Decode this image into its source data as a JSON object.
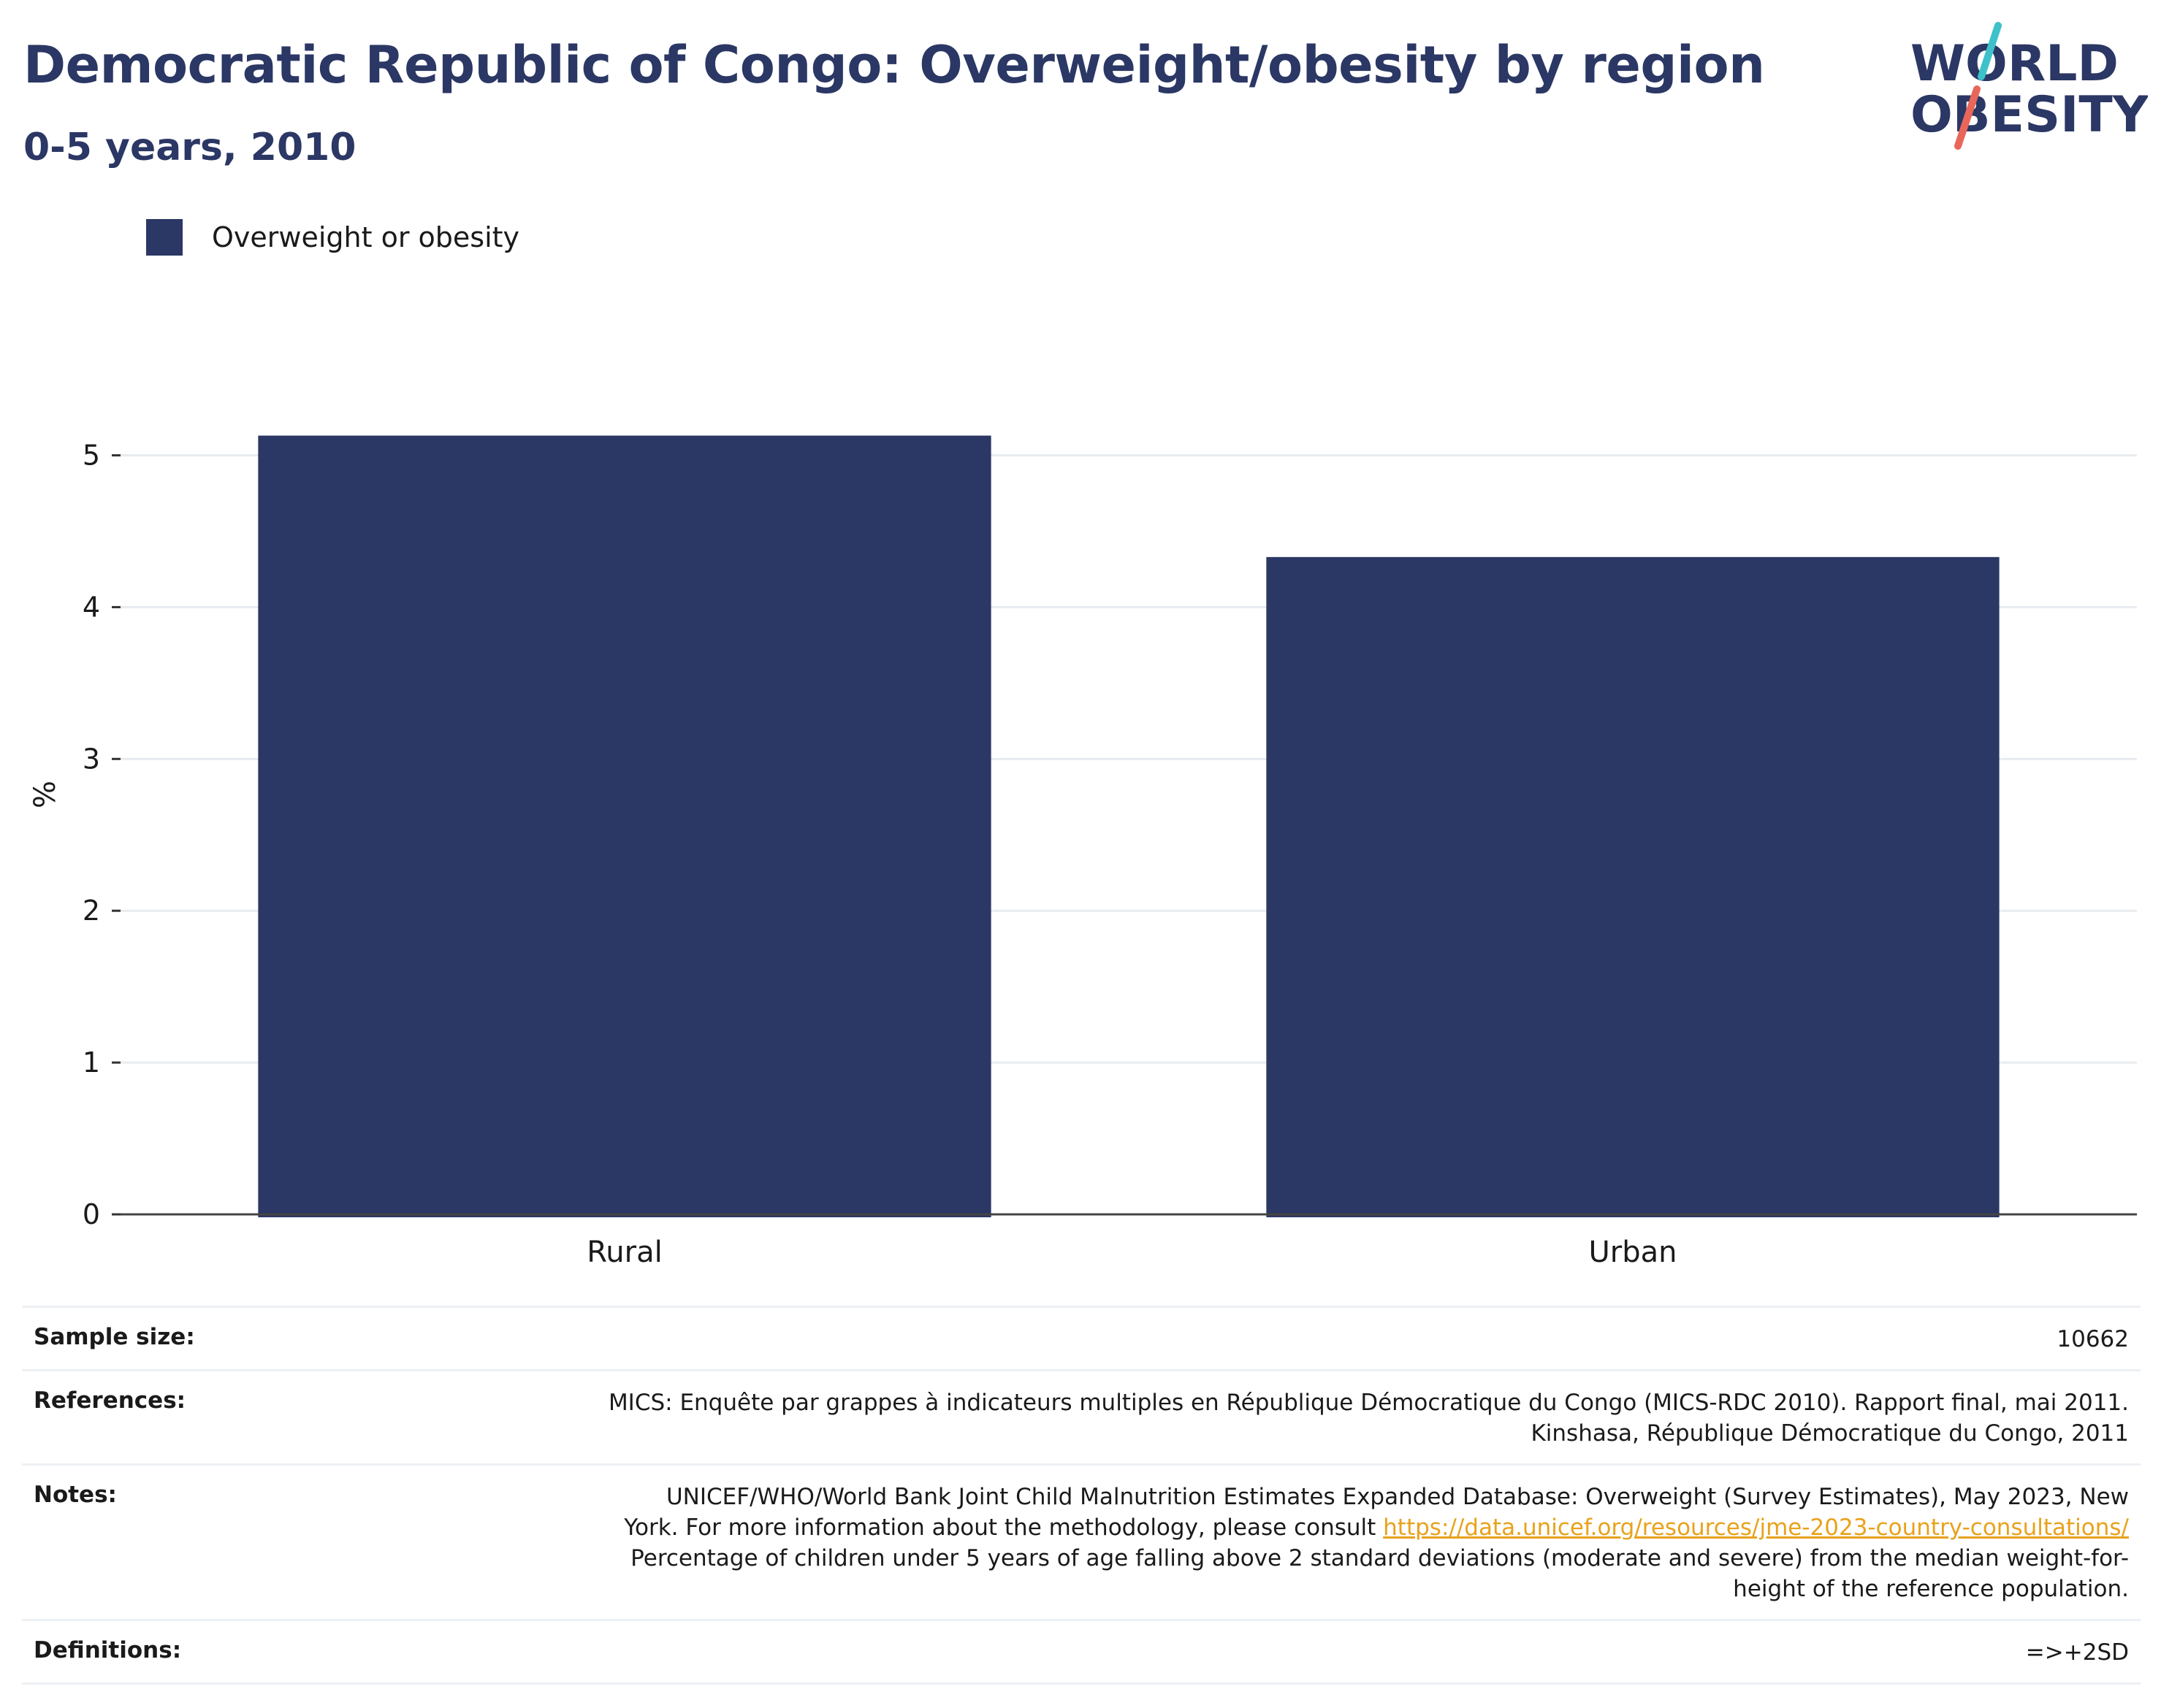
{
  "header": {
    "title": "Democratic Republic of Congo: Overweight/obesity by region",
    "subtitle": "0-5 years, 2010"
  },
  "logo": {
    "line1": "WORLD",
    "line2": "OBESITY",
    "colors": {
      "text": "#2b3764",
      "slash_teal": "#3ec1c9",
      "slash_red": "#e8675a"
    }
  },
  "legend": {
    "label": "Overweight or obesity",
    "color": "#2b3764"
  },
  "chart_data": {
    "type": "bar",
    "categories": [
      "Rural",
      "Urban"
    ],
    "series": [
      {
        "name": "Overweight or obesity",
        "values": [
          5.13,
          4.33
        ],
        "color": "#2b3764"
      }
    ],
    "ylabel": "%",
    "xlabel": "",
    "ylim": [
      0,
      5.45
    ],
    "yticks": [
      0,
      1,
      2,
      3,
      4,
      5
    ],
    "grid": true,
    "legend_position": "top-left"
  },
  "info": {
    "sample_size": {
      "key": "Sample size:",
      "value": "10662"
    },
    "references": {
      "key": "References:",
      "line1": "MICS: Enquête par grappes à indicateurs multiples en République Démocratique du Congo (MICS-RDC 2010). Rapport final, mai 2011.",
      "line2": "Kinshasa, République Démocratique du Congo, 2011"
    },
    "notes": {
      "key": "Notes:",
      "line1": "UNICEF/WHO/World Bank Joint Child Malnutrition Estimates Expanded Database: Overweight (Survey Estimates), May 2023, New",
      "line2_prefix": "York. For more information about the methodology, please consult ",
      "link": "https://data.unicef.org/resources/jme-2023-country-consultations/",
      "line3": "Percentage of children under 5 years of age falling above 2 standard deviations (moderate and severe) from the median weight-for-",
      "line4": "height of the reference population."
    },
    "definitions": {
      "key": "Definitions:",
      "value": "=>+2SD"
    }
  }
}
